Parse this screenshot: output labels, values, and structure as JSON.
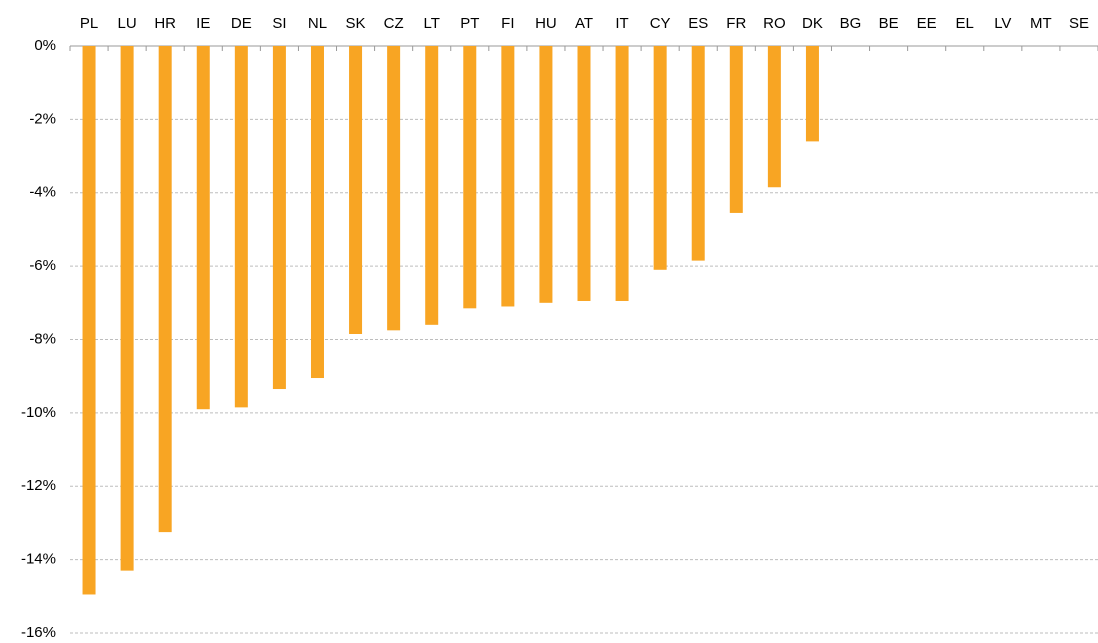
{
  "chart_data": {
    "type": "bar",
    "categories": [
      "PL",
      "LU",
      "HR",
      "IE",
      "DE",
      "SI",
      "NL",
      "SK",
      "CZ",
      "LT",
      "PT",
      "FI",
      "HU",
      "AT",
      "IT",
      "CY",
      "ES",
      "FR",
      "RO",
      "DK",
      "BG",
      "BE",
      "EE",
      "EL",
      "LV",
      "MT",
      "SE"
    ],
    "values": [
      -14.95,
      -14.3,
      -13.25,
      -9.9,
      -9.85,
      -9.35,
      -9.05,
      -7.85,
      -7.75,
      -7.6,
      -7.15,
      -7.1,
      -7.0,
      -6.95,
      -6.95,
      -6.1,
      -5.85,
      -4.55,
      -3.85,
      -2.6,
      null,
      null,
      null,
      null,
      null,
      null,
      null
    ],
    "color": "#f8a523",
    "ylim": [
      -16,
      0
    ],
    "yticks": [
      {
        "value": 0,
        "label": "0%"
      },
      {
        "value": -2,
        "label": "-2%"
      },
      {
        "value": -4,
        "label": "-4%"
      },
      {
        "value": -6,
        "label": "-6%"
      },
      {
        "value": -8,
        "label": "-8%"
      },
      {
        "value": -10,
        "label": "-10%"
      },
      {
        "value": -12,
        "label": "-12%"
      },
      {
        "value": -14,
        "label": "-14%"
      },
      {
        "value": -16,
        "label": "-16%"
      }
    ],
    "grid": true
  }
}
